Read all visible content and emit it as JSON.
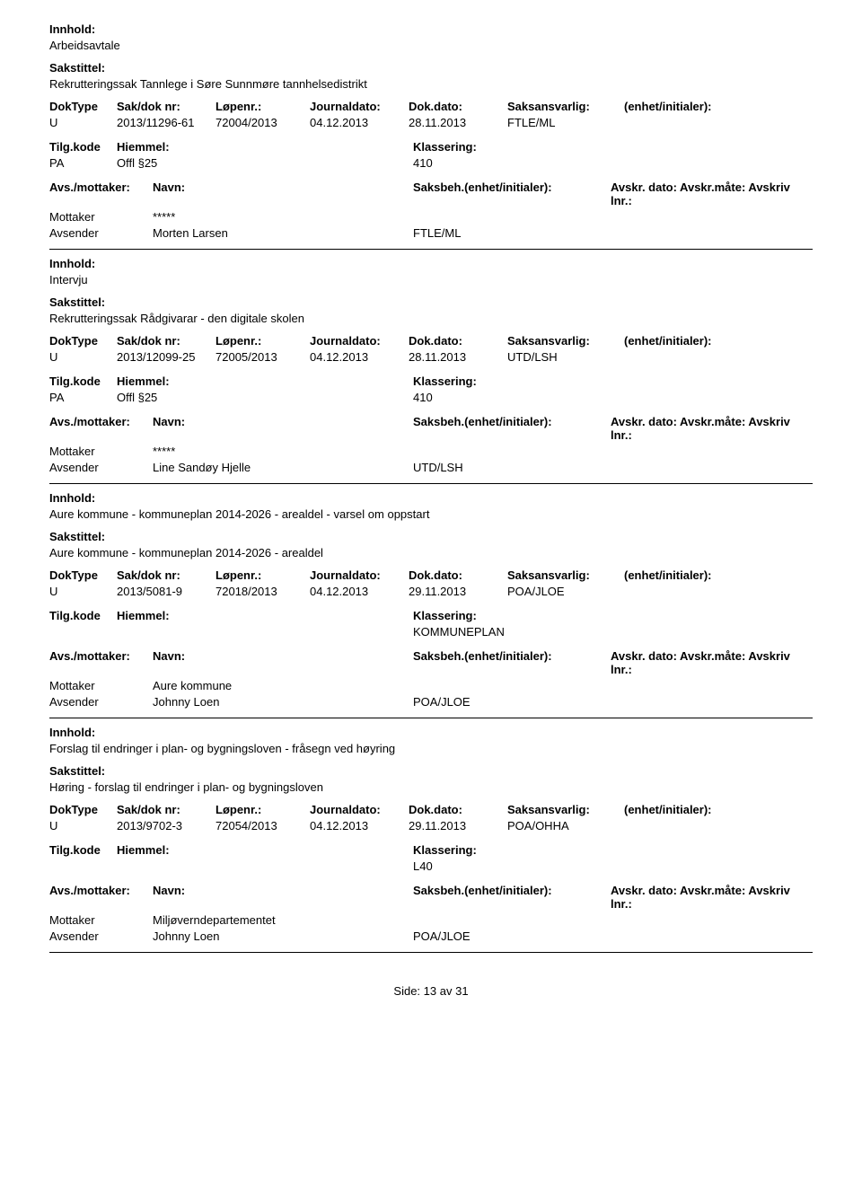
{
  "labels": {
    "innhold": "Innhold:",
    "sakstittel": "Sakstittel:",
    "doktype": "DokType",
    "sakdok": "Sak/dok nr:",
    "lopenr": "Løpenr.:",
    "journaldato": "Journaldato:",
    "dokdato": "Dok.dato:",
    "saksansvarlig": "Saksansvarlig:",
    "enhet": "(enhet/initialer):",
    "tilgkode": "Tilg.kode",
    "hiemmel": "Hiemmel:",
    "klassering": "Klassering:",
    "avsmottaker": "Avs./mottaker:",
    "navn": "Navn:",
    "saksbeh": "Saksbeh.(enhet/initialer):",
    "avskr": "Avskr. dato: Avskr.måte: Avskriv lnr.:",
    "mottaker": "Mottaker",
    "avsender": "Avsender"
  },
  "records": [
    {
      "innhold": "Arbeidsavtale",
      "sakstittel": "Rekrutteringssak Tannlege i Søre Sunnmøre tannhelsedistrikt",
      "doktype": "U",
      "sakdok": "2013/11296-61",
      "lopenr": "72004/2013",
      "journaldato": "04.12.2013",
      "dokdato": "28.11.2013",
      "saksansvarlig": "FTLE/ML",
      "tilgkode": "PA",
      "hiemmel": "Offl §25",
      "klassering": "410",
      "mottaker_navn": "*****",
      "avsender_navn": "Morten Larsen",
      "avsender_saksbeh": "FTLE/ML"
    },
    {
      "innhold": "Intervju",
      "sakstittel": "Rekrutteringssak Rådgivarar - den digitale skolen",
      "doktype": "U",
      "sakdok": "2013/12099-25",
      "lopenr": "72005/2013",
      "journaldato": "04.12.2013",
      "dokdato": "28.11.2013",
      "saksansvarlig": "UTD/LSH",
      "tilgkode": "PA",
      "hiemmel": "Offl §25",
      "klassering": "410",
      "mottaker_navn": "*****",
      "avsender_navn": "Line Sandøy Hjelle",
      "avsender_saksbeh": "UTD/LSH"
    },
    {
      "innhold": "Aure kommune - kommuneplan 2014-2026 - arealdel - varsel om oppstart",
      "sakstittel": "Aure kommune - kommuneplan 2014-2026 - arealdel",
      "doktype": "U",
      "sakdok": "2013/5081-9",
      "lopenr": "72018/2013",
      "journaldato": "04.12.2013",
      "dokdato": "29.11.2013",
      "saksansvarlig": "POA/JLOE",
      "tilgkode": "",
      "hiemmel": "",
      "klassering": "KOMMUNEPLAN",
      "mottaker_navn": "Aure kommune",
      "avsender_navn": "Johnny Loen",
      "avsender_saksbeh": "POA/JLOE"
    },
    {
      "innhold": "Forslag til endringer i plan- og bygningsloven - fråsegn ved høyring",
      "sakstittel": "Høring - forslag til endringer i plan- og bygningsloven",
      "doktype": "U",
      "sakdok": "2013/9702-3",
      "lopenr": "72054/2013",
      "journaldato": "04.12.2013",
      "dokdato": "29.11.2013",
      "saksansvarlig": "POA/OHHA",
      "tilgkode": "",
      "hiemmel": "",
      "klassering": "L40",
      "mottaker_navn": "Miljøverndepartementet",
      "avsender_navn": "Johnny Loen",
      "avsender_saksbeh": "POA/JLOE"
    }
  ],
  "footer": {
    "side_label": "Side:",
    "page": "13",
    "av": "av",
    "total": "31"
  }
}
